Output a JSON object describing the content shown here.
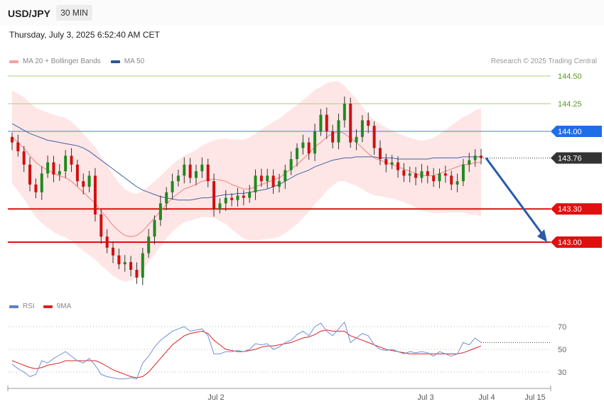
{
  "header": {
    "symbol": "USD/JPY",
    "timeframe": "30 MIN",
    "datetime": "Thursday, July 3, 2025 6:52:40 AM CET"
  },
  "legend": {
    "items": [
      {
        "label": "MA 20 + Bollinger Bands",
        "color": "#f08080"
      },
      {
        "label": "MA 50",
        "color": "#2f5597"
      }
    ],
    "credit": "Research © 2025 Trading Central"
  },
  "rsi_legend": {
    "items": [
      {
        "label": "RSI",
        "color": "#5b7fd0"
      },
      {
        "label": "9MA",
        "color": "#e02020"
      }
    ]
  },
  "chart_data": [
    {
      "type": "candlestick",
      "title": "",
      "y_levels": [
        144.5,
        144.25,
        144.0,
        143.76,
        143.3,
        143.0
      ],
      "ylim": [
        142.6,
        144.6
      ],
      "resistance": [
        {
          "value": 144.5,
          "label": "144.50",
          "color": "#70a830",
          "style": "thin"
        },
        {
          "value": 144.25,
          "label": "144.25",
          "color": "#70a830",
          "style": "thin"
        }
      ],
      "support": [
        {
          "value": 144.0,
          "label": "144.00",
          "color": "#1f6ee8",
          "style": "pivot"
        },
        {
          "value": 143.3,
          "label": "143.30",
          "color": "#e01010",
          "style": "support"
        },
        {
          "value": 143.0,
          "label": "143.00",
          "color": "#e01010",
          "style": "support"
        }
      ],
      "last_price": {
        "value": 143.76,
        "label": "143.76"
      },
      "x_labels": [
        "Jul 2",
        "Jul 3",
        "Jul 4",
        "Jul 15"
      ],
      "forecast_target": 143.0,
      "closes": [
        143.9,
        143.82,
        143.7,
        143.52,
        143.45,
        143.62,
        143.72,
        143.61,
        143.64,
        143.78,
        143.7,
        143.55,
        143.5,
        143.6,
        143.25,
        143.05,
        142.95,
        142.88,
        142.8,
        142.82,
        142.75,
        142.68,
        142.9,
        143.05,
        143.2,
        143.35,
        143.45,
        143.55,
        143.6,
        143.7,
        143.58,
        143.64,
        143.7,
        143.55,
        143.3,
        143.35,
        143.4,
        143.38,
        143.42,
        143.4,
        143.45,
        143.6,
        143.55,
        143.6,
        143.5,
        143.55,
        143.65,
        143.75,
        143.85,
        143.9,
        143.8,
        144.0,
        144.15,
        144.0,
        143.9,
        144.1,
        144.25,
        143.9,
        143.95,
        144.1,
        144.05,
        143.85,
        143.75,
        143.7,
        143.72,
        143.65,
        143.6,
        143.62,
        143.58,
        143.64,
        143.6,
        143.55,
        143.62,
        143.6,
        143.52,
        143.55,
        143.7,
        143.74,
        143.78,
        143.76
      ],
      "ma20": [
        143.95,
        143.9,
        143.85,
        143.78,
        143.72,
        143.68,
        143.65,
        143.62,
        143.6,
        143.58,
        143.55,
        143.5,
        143.45,
        143.4,
        143.35,
        143.28,
        143.22,
        143.15,
        143.1,
        143.06,
        143.05,
        143.06,
        143.1,
        143.16,
        143.22,
        143.28,
        143.34,
        143.4,
        143.44,
        143.48,
        143.5,
        143.52,
        143.55,
        143.56,
        143.57,
        143.56,
        143.55,
        143.52,
        143.5,
        143.48,
        143.48,
        143.5,
        143.52,
        143.54,
        143.56,
        143.58,
        143.62,
        143.66,
        143.7,
        143.75,
        143.8,
        143.86,
        143.9,
        143.95,
        143.98,
        144.0,
        143.98,
        143.94,
        143.9,
        143.85,
        143.8,
        143.76,
        143.74,
        143.72,
        143.7,
        143.68,
        143.66,
        143.64,
        143.62,
        143.6,
        143.6,
        143.6,
        143.62,
        143.64,
        143.66,
        143.68,
        143.7,
        143.7,
        143.72,
        143.72
      ],
      "ma50": [
        144.07,
        144.04,
        144.01,
        143.98,
        143.96,
        143.94,
        143.92,
        143.91,
        143.9,
        143.89,
        143.88,
        143.87,
        143.85,
        143.82,
        143.78,
        143.74,
        143.7,
        143.66,
        143.62,
        143.58,
        143.54,
        143.5,
        143.47,
        143.45,
        143.43,
        143.41,
        143.4,
        143.39,
        143.38,
        143.38,
        143.38,
        143.39,
        143.4,
        143.4,
        143.41,
        143.42,
        143.43,
        143.43,
        143.44,
        143.44,
        143.45,
        143.46,
        143.47,
        143.48,
        143.5,
        143.52,
        143.55,
        143.58,
        143.61,
        143.63,
        143.65,
        143.68,
        143.7,
        143.72,
        143.74,
        143.75,
        143.76,
        143.76,
        143.77,
        143.77,
        143.77,
        143.77,
        143.76,
        143.76,
        143.76,
        143.75,
        143.75,
        143.75,
        143.75,
        143.75,
        143.75,
        143.76,
        143.76,
        143.76,
        143.76,
        143.76,
        143.77,
        143.77,
        143.77,
        143.77
      ]
    },
    {
      "type": "line",
      "title": "",
      "ylim": [
        20,
        80
      ],
      "y_levels": [
        70,
        50,
        30
      ],
      "series": [
        {
          "name": "RSI",
          "color": "#5b7fd0",
          "values": [
            37,
            33,
            30,
            26,
            28,
            40,
            38,
            42,
            45,
            48,
            44,
            40,
            38,
            42,
            36,
            28,
            26,
            25,
            24,
            24,
            25,
            24,
            38,
            44,
            52,
            58,
            62,
            66,
            68,
            70,
            66,
            67,
            68,
            62,
            46,
            46,
            48,
            48,
            49,
            48,
            50,
            55,
            54,
            55,
            50,
            52,
            56,
            58,
            63,
            66,
            62,
            70,
            73,
            66,
            62,
            68,
            74,
            56,
            60,
            64,
            62,
            54,
            50,
            49,
            50,
            48,
            46,
            48,
            47,
            48,
            47,
            44,
            48,
            46,
            44,
            46,
            56,
            54,
            60,
            56
          ]
        },
        {
          "name": "9MA",
          "color": "#e02020",
          "values": [
            40,
            38,
            36,
            34,
            33,
            34,
            36,
            37,
            38,
            40,
            40,
            40,
            40,
            40,
            40,
            38,
            35,
            32,
            30,
            28,
            26,
            25,
            26,
            30,
            36,
            42,
            48,
            54,
            58,
            62,
            64,
            65,
            66,
            64,
            58,
            54,
            50,
            49,
            48,
            48,
            49,
            50,
            52,
            53,
            53,
            54,
            55,
            56,
            58,
            60,
            61,
            63,
            66,
            67,
            66,
            66,
            66,
            62,
            60,
            58,
            56,
            54,
            52,
            50,
            49,
            48,
            47,
            46,
            46,
            46,
            46,
            46,
            46,
            46,
            46,
            46,
            47,
            49,
            51,
            53
          ]
        }
      ],
      "x_labels": [
        "Jul 2",
        "Jul 3",
        "Jul 4",
        "Jul 15"
      ]
    }
  ]
}
